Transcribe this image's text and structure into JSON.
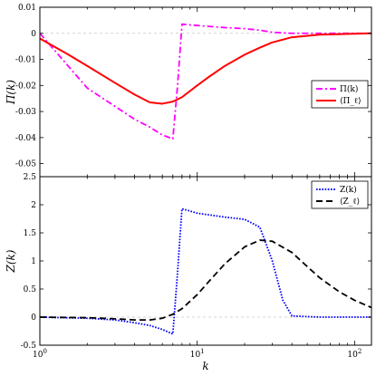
{
  "chart_data": [
    {
      "type": "line",
      "ylabel": "Π(k)",
      "xscale": "log",
      "xlim": [
        1,
        128
      ],
      "ylim": [
        -0.055,
        0.01
      ],
      "yticks": [
        0.01,
        0,
        -0.01,
        -0.02,
        -0.03,
        -0.04,
        -0.05
      ],
      "ytick_labels": [
        "0.01",
        "0",
        "-0.01",
        "-0.02",
        "-0.03",
        "-0.04",
        "-0.05"
      ],
      "zero_line": true,
      "legend_position": "right",
      "series": [
        {
          "name": "Π(k)",
          "color": "#ff00ff",
          "dash": "dash-dot",
          "points": [
            [
              1,
              0
            ],
            [
              2,
              -0.021
            ],
            [
              3,
              -0.028
            ],
            [
              4,
              -0.033
            ],
            [
              5,
              -0.036
            ],
            [
              6,
              -0.039
            ],
            [
              7,
              -0.0405
            ],
            [
              7.5,
              -0.02
            ],
            [
              8,
              0.0035
            ],
            [
              10,
              0.003
            ],
            [
              15,
              0.0022
            ],
            [
              20,
              0.0018
            ],
            [
              25,
              0.0012
            ],
            [
              30,
              0.0004
            ],
            [
              40,
              0.0
            ],
            [
              60,
              0.0
            ],
            [
              128,
              0.0
            ]
          ]
        },
        {
          "name": "⟨Π_ℓ⟩",
          "color": "#ff0000",
          "dash": "solid",
          "points": [
            [
              1,
              -0.002
            ],
            [
              1.5,
              -0.008
            ],
            [
              2,
              -0.0125
            ],
            [
              3,
              -0.019
            ],
            [
              4,
              -0.0235
            ],
            [
              5,
              -0.0265
            ],
            [
              6,
              -0.027
            ],
            [
              7,
              -0.0262
            ],
            [
              8,
              -0.0245
            ],
            [
              10,
              -0.02
            ],
            [
              12,
              -0.0165
            ],
            [
              15,
              -0.0125
            ],
            [
              20,
              -0.0082
            ],
            [
              25,
              -0.0055
            ],
            [
              30,
              -0.0035
            ],
            [
              40,
              -0.0015
            ],
            [
              60,
              -0.0005
            ],
            [
              128,
              0.0
            ]
          ]
        }
      ]
    },
    {
      "type": "line",
      "xlabel": "k",
      "ylabel": "Z(k)",
      "xscale": "log",
      "xlim": [
        1,
        128
      ],
      "ylim": [
        -0.5,
        2.5
      ],
      "yticks": [
        2.5,
        2,
        1.5,
        1,
        0.5,
        0,
        -0.5
      ],
      "ytick_labels": [
        "2.5",
        "2",
        "1.5",
        "1",
        "0.5",
        "0",
        "-0.5"
      ],
      "xtick_labels": [
        "10^0",
        "10^1",
        "10^2"
      ],
      "zero_line": true,
      "legend_position": "top-right",
      "series": [
        {
          "name": "Z(k)",
          "color": "#0000ff",
          "dash": "dotted",
          "points": [
            [
              1,
              0
            ],
            [
              2,
              -0.02
            ],
            [
              3,
              -0.05
            ],
            [
              4,
              -0.1
            ],
            [
              5,
              -0.15
            ],
            [
              6,
              -0.22
            ],
            [
              7,
              -0.3
            ],
            [
              7.5,
              0.8
            ],
            [
              8,
              1.93
            ],
            [
              10,
              1.85
            ],
            [
              15,
              1.78
            ],
            [
              20,
              1.74
            ],
            [
              25,
              1.6
            ],
            [
              30,
              1.0
            ],
            [
              35,
              0.3
            ],
            [
              40,
              0.02
            ],
            [
              60,
              0.0
            ],
            [
              128,
              0.0
            ]
          ]
        },
        {
          "name": "⟨Z_ℓ⟩",
          "color": "#000000",
          "dash": "dashed",
          "points": [
            [
              1,
              0
            ],
            [
              2,
              -0.01
            ],
            [
              3,
              -0.03
            ],
            [
              4,
              -0.05
            ],
            [
              5,
              -0.05
            ],
            [
              6,
              -0.02
            ],
            [
              7,
              0.05
            ],
            [
              8,
              0.15
            ],
            [
              10,
              0.4
            ],
            [
              12,
              0.65
            ],
            [
              15,
              0.95
            ],
            [
              20,
              1.25
            ],
            [
              25,
              1.37
            ],
            [
              30,
              1.35
            ],
            [
              40,
              1.15
            ],
            [
              50,
              0.9
            ],
            [
              60,
              0.7
            ],
            [
              80,
              0.45
            ],
            [
              100,
              0.3
            ],
            [
              128,
              0.17
            ]
          ]
        }
      ]
    }
  ],
  "legends": {
    "top": [
      {
        "text": "Π(k)",
        "color": "#ff00ff",
        "dash": "dash-dot"
      },
      {
        "text": "⟨Π_ℓ⟩",
        "color": "#ff0000",
        "dash": "solid"
      }
    ],
    "bottom": [
      {
        "text": "Z(k)",
        "color": "#0000ff",
        "dash": "dotted"
      },
      {
        "text": "⟨Z_ℓ⟩",
        "color": "#000000",
        "dash": "dashed"
      }
    ]
  }
}
